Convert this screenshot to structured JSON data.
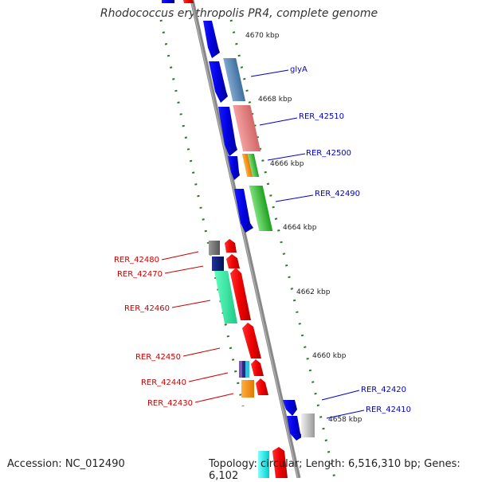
{
  "title": "Rhodococcus erythropolis PR4, complete genome",
  "footer": {
    "accession": "Accession: NC_012490",
    "summary": "Topology: circular; Length: 6,516,310 bp; Genes: 6,102"
  },
  "ticks": [
    "4670 kbp",
    "4668 kbp",
    "4666 kbp",
    "4664 kbp",
    "4662 kbp",
    "4660 kbp",
    "4658 kbp"
  ],
  "forward_genes": [
    "glyA",
    "RER_42510",
    "RER_42500",
    "RER_42490",
    "RER_42420",
    "RER_42410"
  ],
  "reverse_genes": [
    "RER_42480",
    "RER_42470",
    "RER_42460",
    "RER_42450",
    "RER_42440",
    "RER_42430"
  ],
  "colors": {
    "forward_label": "#0000cc",
    "reverse_label": "#cc0000",
    "backbone": "#888888",
    "tick": "#2a7a2a"
  }
}
